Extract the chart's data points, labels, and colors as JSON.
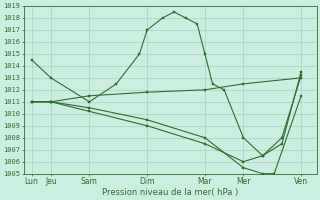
{
  "title": "",
  "xlabel": "Pression niveau de la mer( hPa )",
  "ylabel": "",
  "bg_color": "#cceee0",
  "grid_color": "#99ccbb",
  "line_color": "#2d6e2d",
  "ylim": [
    1005,
    1019
  ],
  "yticks": [
    1005,
    1006,
    1007,
    1008,
    1009,
    1010,
    1011,
    1012,
    1013,
    1014,
    1015,
    1016,
    1017,
    1018,
    1019
  ],
  "xtick_labels": [
    "Lun",
    "Jeu",
    "Sam",
    "Dim",
    "Mar",
    "Mer",
    "Ven"
  ],
  "xtick_positions": [
    0,
    0.5,
    1.5,
    3.0,
    4.5,
    5.5,
    7.0
  ],
  "xlim": [
    -0.2,
    7.4
  ],
  "lines": [
    {
      "x": [
        0,
        0.5,
        1.5,
        2.2,
        2.8,
        3.0,
        3.4,
        3.7,
        4.0,
        4.3,
        4.5,
        4.7,
        5.0,
        5.5,
        6.0,
        6.5,
        7.0
      ],
      "y": [
        1014.5,
        1013.0,
        1011.0,
        1012.5,
        1015.0,
        1017.0,
        1018.0,
        1018.5,
        1018.0,
        1017.5,
        1015.0,
        1012.5,
        1012.0,
        1008.0,
        1006.5,
        1008.0,
        1013.2
      ]
    },
    {
      "x": [
        0,
        0.5,
        1.5,
        3.0,
        4.5,
        5.5,
        7.0
      ],
      "y": [
        1011.0,
        1011.0,
        1011.5,
        1011.8,
        1012.0,
        1012.5,
        1013.0
      ]
    },
    {
      "x": [
        0,
        0.5,
        1.5,
        3.0,
        4.5,
        5.5,
        6.0,
        6.3,
        7.0
      ],
      "y": [
        1011.0,
        1011.0,
        1010.5,
        1009.5,
        1008.0,
        1005.5,
        1005.0,
        1005.0,
        1011.5
      ]
    },
    {
      "x": [
        0,
        0.5,
        1.5,
        3.0,
        4.5,
        5.5,
        6.0,
        6.5,
        7.0
      ],
      "y": [
        1011.0,
        1011.0,
        1010.2,
        1009.0,
        1007.5,
        1006.0,
        1006.5,
        1007.5,
        1013.5
      ]
    }
  ]
}
